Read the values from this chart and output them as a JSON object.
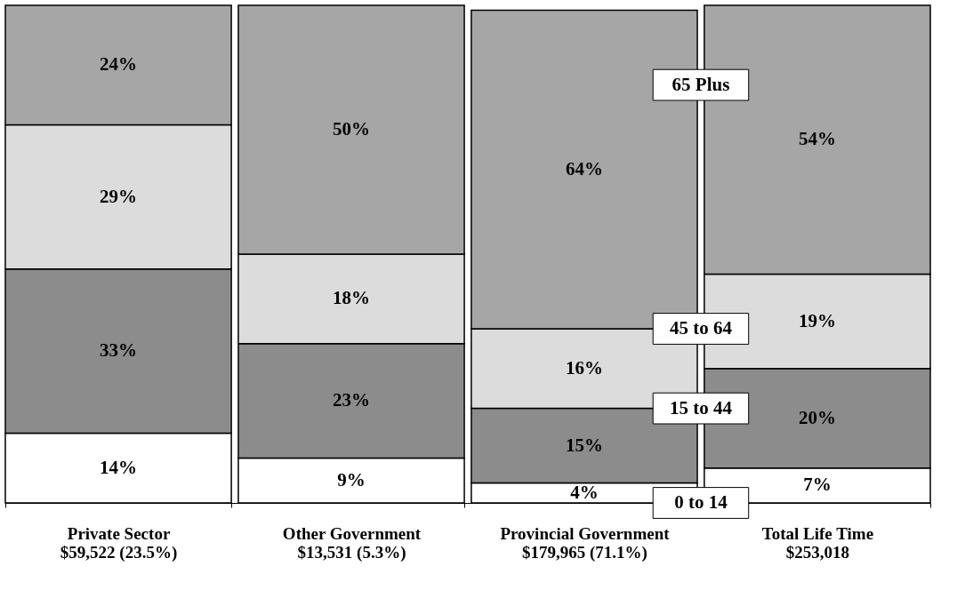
{
  "chart_data": {
    "type": "bar",
    "stacked": true,
    "legend": false,
    "grid": false,
    "categories": [
      "Private Sector\n$59,522 (23.5%)",
      "Other Government\n$13,531 (5.3%)",
      "Provincial Government\n$179,965 (71.1%)",
      "Total Life Time\n$253,018"
    ],
    "series": [
      {
        "name": "0 to 14",
        "color": "#ffffff",
        "values": [
          14,
          9,
          4,
          7
        ],
        "value_labels": [
          "14%",
          "9%",
          "4%",
          "7%"
        ]
      },
      {
        "name": "15 to 44",
        "color": "#8c8c8c",
        "values": [
          33,
          23,
          15,
          20
        ],
        "value_labels": [
          "33%",
          "23%",
          "15%",
          "20%"
        ]
      },
      {
        "name": "45 to 64",
        "color": "#dcdcdc",
        "values": [
          29,
          18,
          16,
          19
        ],
        "value_labels": [
          "29%",
          "18%",
          "16%",
          "19%"
        ]
      },
      {
        "name": "65 Plus",
        "color": "#a6a6a6",
        "values": [
          24,
          50,
          64,
          54
        ],
        "value_labels": [
          "24%",
          "50%",
          "64%",
          "54%"
        ]
      }
    ]
  }
}
